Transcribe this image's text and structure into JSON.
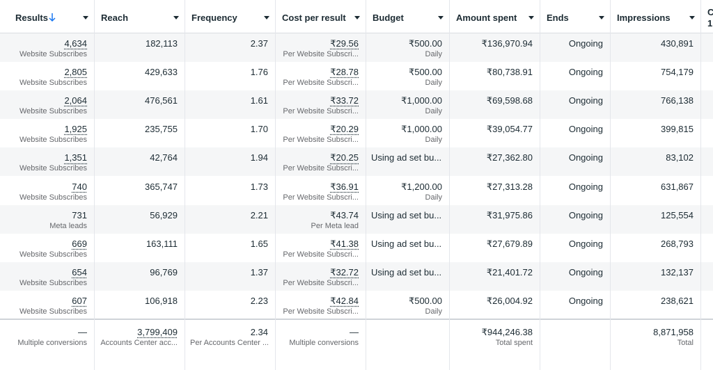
{
  "table": {
    "columns": [
      {
        "label": "Results"
      },
      {
        "label": "Reach"
      },
      {
        "label": "Frequency"
      },
      {
        "label": "Cost per result"
      },
      {
        "label": "Budget"
      },
      {
        "label": "Amount spent"
      },
      {
        "label": "Ends"
      },
      {
        "label": "Impressions"
      },
      {
        "label": "C",
        "sub": "1,"
      }
    ],
    "rows": [
      {
        "cells": [
          {
            "main": "4,634",
            "sub": "Website Subscribes",
            "underlined": true
          },
          {
            "main": "182,113"
          },
          {
            "main": "2.37"
          },
          {
            "main": "₹29.56",
            "sub": "Per Website Subscri...",
            "underlined": true
          },
          {
            "main": "₹500.00",
            "sub": "Daily"
          },
          {
            "main": "₹136,970.94"
          },
          {
            "main": "Ongoing"
          },
          {
            "main": "430,891"
          }
        ]
      },
      {
        "cells": [
          {
            "main": "2,805",
            "sub": "Website Subscribes",
            "underlined": true
          },
          {
            "main": "429,633"
          },
          {
            "main": "1.76"
          },
          {
            "main": "₹28.78",
            "sub": "Per Website Subscri...",
            "underlined": true
          },
          {
            "main": "₹500.00",
            "sub": "Daily"
          },
          {
            "main": "₹80,738.91"
          },
          {
            "main": "Ongoing"
          },
          {
            "main": "754,179"
          }
        ]
      },
      {
        "cells": [
          {
            "main": "2,064",
            "sub": "Website Subscribes",
            "underlined": true
          },
          {
            "main": "476,561"
          },
          {
            "main": "1.61"
          },
          {
            "main": "₹33.72",
            "sub": "Per Website Subscri...",
            "underlined": true
          },
          {
            "main": "₹1,000.00",
            "sub": "Daily"
          },
          {
            "main": "₹69,598.68"
          },
          {
            "main": "Ongoing"
          },
          {
            "main": "766,138"
          }
        ]
      },
      {
        "cells": [
          {
            "main": "1,925",
            "sub": "Website Subscribes",
            "underlined": true
          },
          {
            "main": "235,755"
          },
          {
            "main": "1.70"
          },
          {
            "main": "₹20.29",
            "sub": "Per Website Subscri...",
            "underlined": true
          },
          {
            "main": "₹1,000.00",
            "sub": "Daily"
          },
          {
            "main": "₹39,054.77"
          },
          {
            "main": "Ongoing"
          },
          {
            "main": "399,815"
          }
        ]
      },
      {
        "cells": [
          {
            "main": "1,351",
            "sub": "Website Subscribes",
            "underlined": true
          },
          {
            "main": "42,764"
          },
          {
            "main": "1.94"
          },
          {
            "main": "₹20.25",
            "sub": "Per Website Subscri...",
            "underlined": true
          },
          {
            "main": "Using ad set bu..."
          },
          {
            "main": "₹27,362.80"
          },
          {
            "main": "Ongoing"
          },
          {
            "main": "83,102"
          }
        ]
      },
      {
        "cells": [
          {
            "main": "740",
            "sub": "Website Subscribes",
            "underlined": true
          },
          {
            "main": "365,747"
          },
          {
            "main": "1.73"
          },
          {
            "main": "₹36.91",
            "sub": "Per Website Subscri...",
            "underlined": true
          },
          {
            "main": "₹1,200.00",
            "sub": "Daily"
          },
          {
            "main": "₹27,313.28"
          },
          {
            "main": "Ongoing"
          },
          {
            "main": "631,867"
          }
        ]
      },
      {
        "cells": [
          {
            "main": "731",
            "sub": "Meta leads"
          },
          {
            "main": "56,929"
          },
          {
            "main": "2.21"
          },
          {
            "main": "₹43.74",
            "sub": "Per Meta lead"
          },
          {
            "main": "Using ad set bu..."
          },
          {
            "main": "₹31,975.86"
          },
          {
            "main": "Ongoing"
          },
          {
            "main": "125,554"
          }
        ]
      },
      {
        "cells": [
          {
            "main": "669",
            "sub": "Website Subscribes",
            "underlined": true
          },
          {
            "main": "163,111"
          },
          {
            "main": "1.65"
          },
          {
            "main": "₹41.38",
            "sub": "Per Website Subscri...",
            "underlined": true
          },
          {
            "main": "Using ad set bu..."
          },
          {
            "main": "₹27,679.89"
          },
          {
            "main": "Ongoing"
          },
          {
            "main": "268,793"
          }
        ]
      },
      {
        "cells": [
          {
            "main": "654",
            "sub": "Website Subscribes",
            "underlined": true
          },
          {
            "main": "96,769"
          },
          {
            "main": "1.37"
          },
          {
            "main": "₹32.72",
            "sub": "Per Website Subscri...",
            "underlined": true
          },
          {
            "main": "Using ad set bu..."
          },
          {
            "main": "₹21,401.72"
          },
          {
            "main": "Ongoing"
          },
          {
            "main": "132,137"
          }
        ]
      },
      {
        "cells": [
          {
            "main": "607",
            "sub": "Website Subscribes",
            "underlined": true
          },
          {
            "main": "106,918"
          },
          {
            "main": "2.23"
          },
          {
            "main": "₹42.84",
            "sub": "Per Website Subscri...",
            "underlined": true
          },
          {
            "main": "₹500.00",
            "sub": "Daily"
          },
          {
            "main": "₹26,004.92"
          },
          {
            "main": "Ongoing"
          },
          {
            "main": "238,621"
          }
        ]
      }
    ],
    "footer": [
      {
        "main": "—",
        "sub": "Multiple conversions"
      },
      {
        "main": "3,799,409",
        "sub": "Accounts Center acc...",
        "underlined": true
      },
      {
        "main": "2.34",
        "sub": "Per Accounts Center ..."
      },
      {
        "main": "—",
        "sub": "Multiple conversions"
      },
      null,
      {
        "main": "₹944,246.38",
        "sub": "Total spent"
      },
      null,
      {
        "main": "8,871,958",
        "sub": "Total"
      }
    ]
  }
}
